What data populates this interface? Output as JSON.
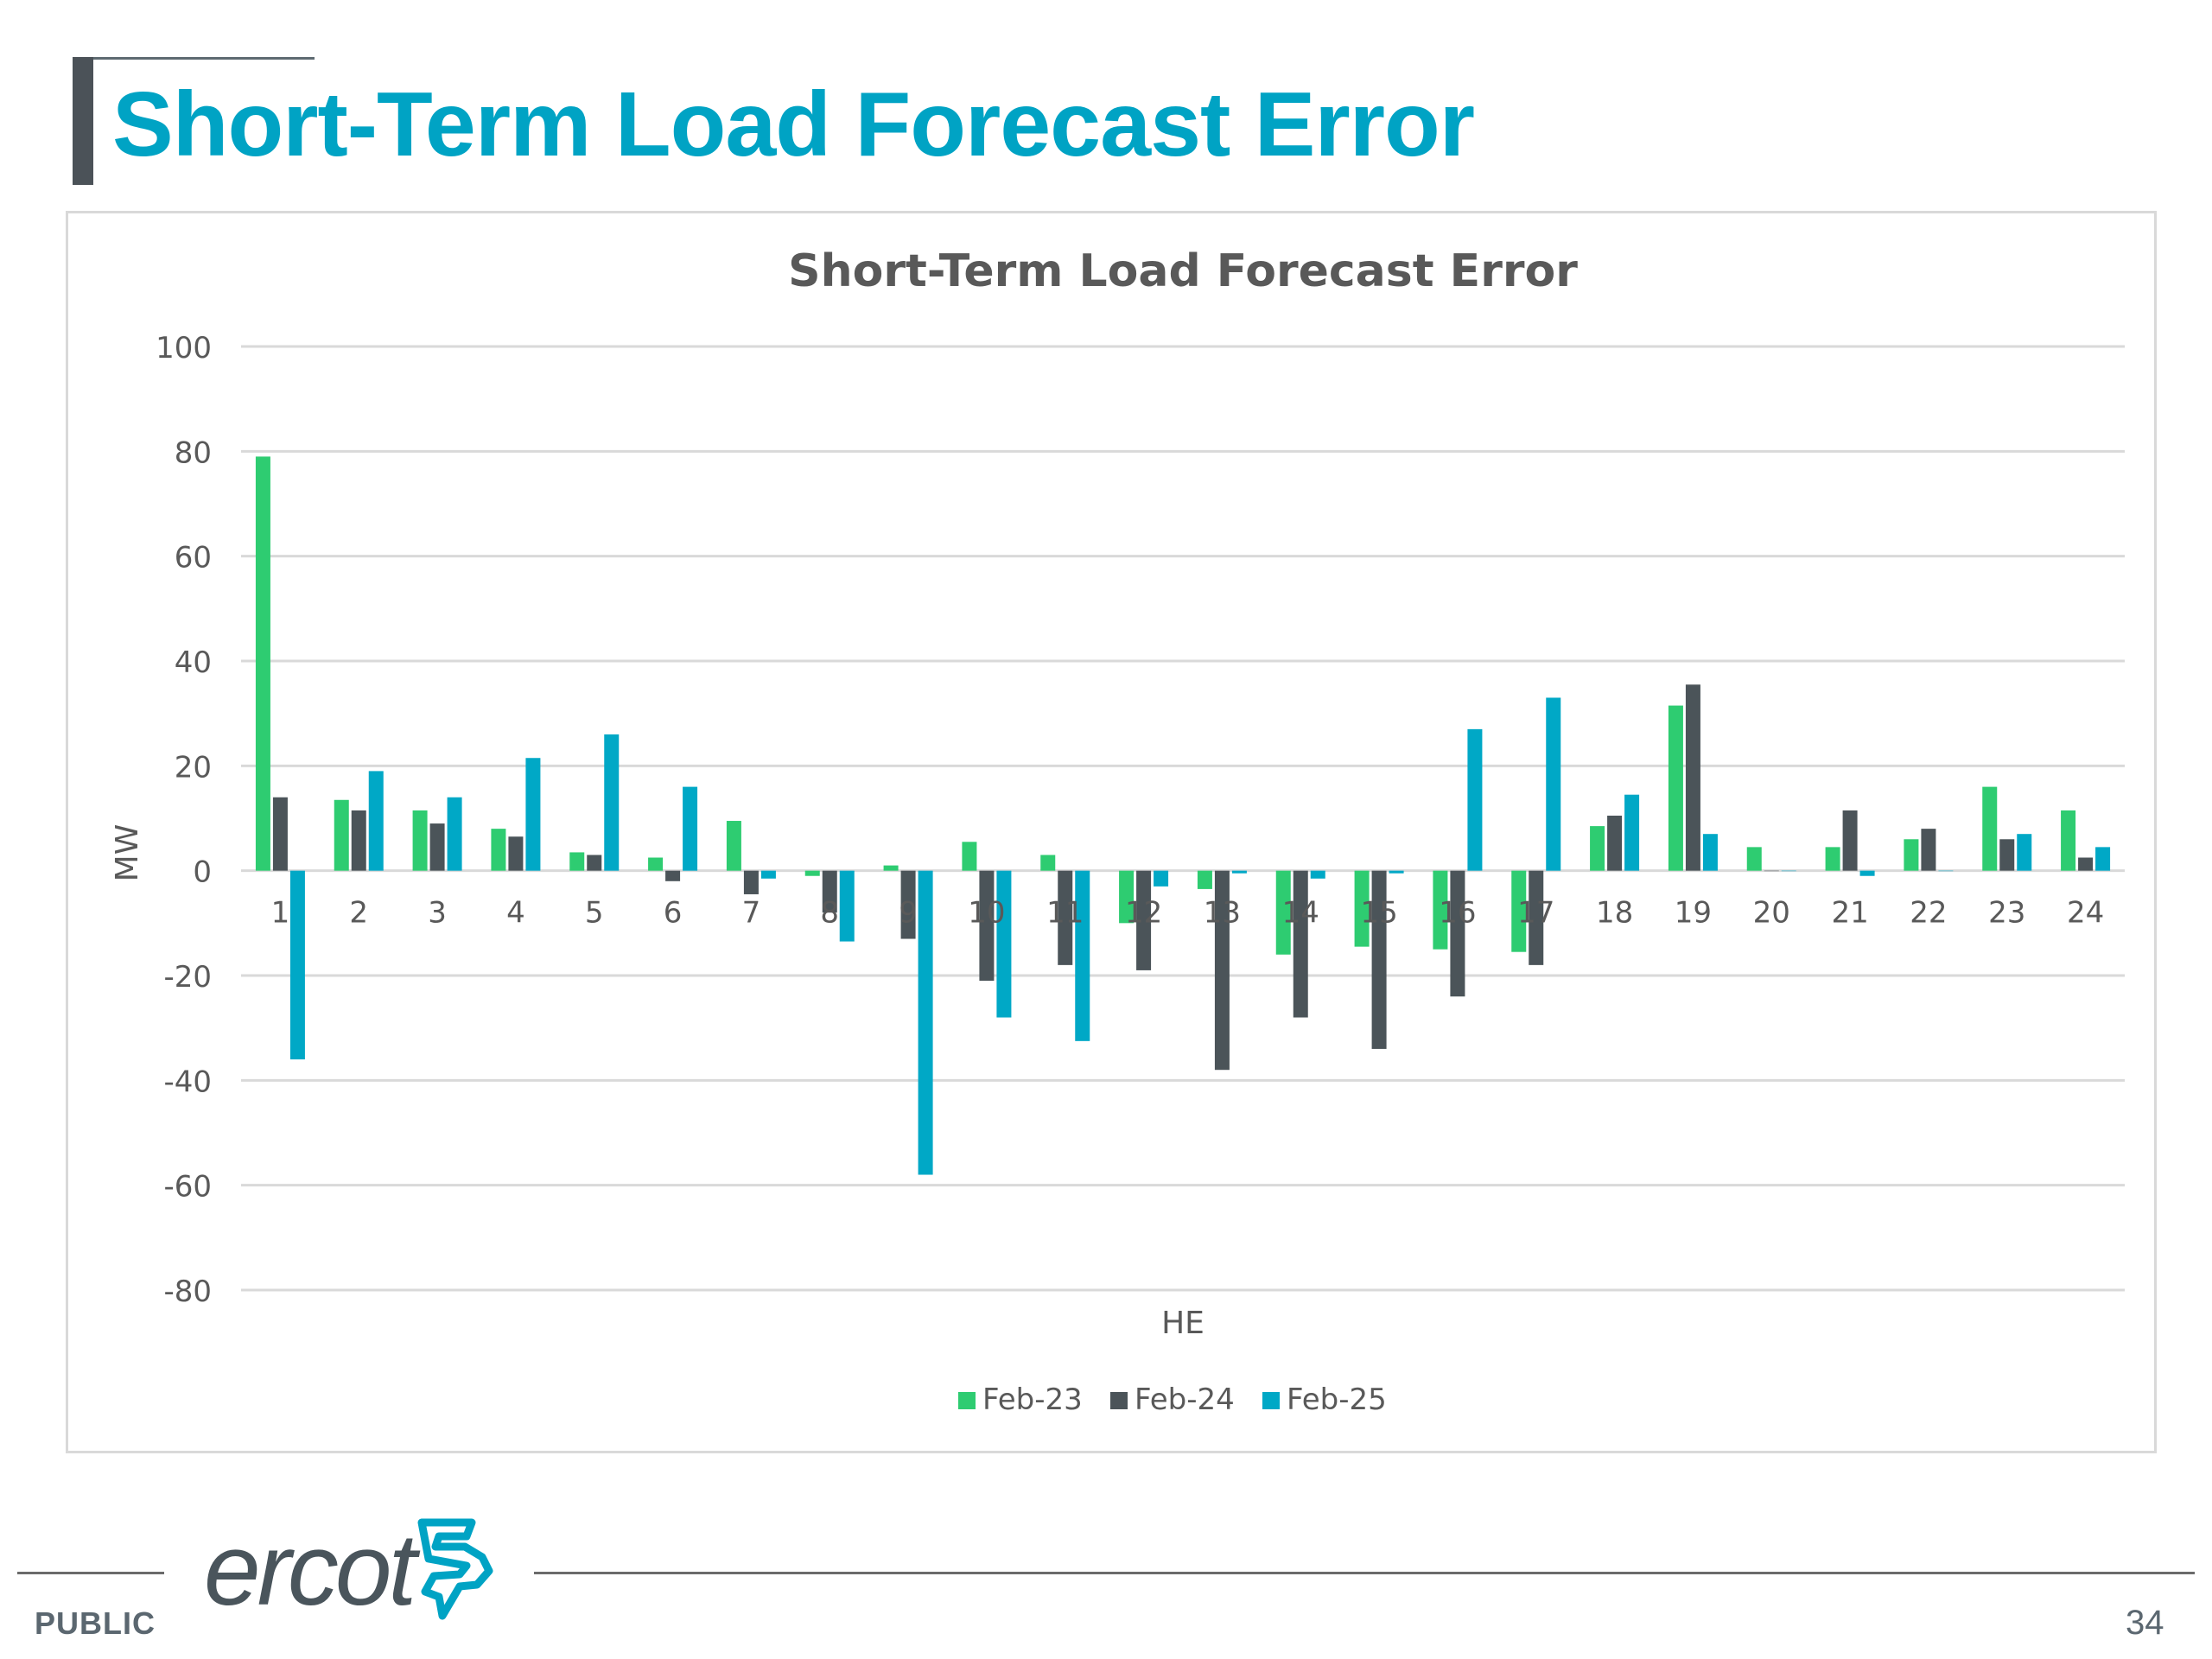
{
  "slide": {
    "title": "Short-Term Load Forecast Error",
    "footer_label": "PUBLIC",
    "page_number": "34",
    "logo_text": "ercot",
    "logo_icon": "ercot-texas-icon"
  },
  "colors": {
    "title": "#00a3c4",
    "Feb-23": "#2ecc71",
    "Feb-24": "#4b5459",
    "Feb-25": "#00a8c6"
  },
  "chart_data": {
    "type": "bar",
    "title": "Short-Term Load Forecast Error",
    "xlabel": "HE",
    "ylabel": "MW",
    "ylim": [
      -80,
      100
    ],
    "yticks": [
      100,
      80,
      60,
      40,
      20,
      0,
      -20,
      -40,
      -60,
      -80
    ],
    "grid": true,
    "legend_position": "bottom",
    "categories": [
      "1",
      "2",
      "3",
      "4",
      "5",
      "6",
      "7",
      "8",
      "9",
      "10",
      "11",
      "12",
      "13",
      "14",
      "15",
      "16",
      "17",
      "18",
      "19",
      "20",
      "21",
      "22",
      "23",
      "24"
    ],
    "series": [
      {
        "name": "Feb-23",
        "values": [
          79,
          13.5,
          11.5,
          8,
          3.5,
          2.5,
          9.5,
          -1,
          1,
          5.5,
          3,
          -10,
          -3.5,
          -16,
          -14.5,
          -15,
          -15.5,
          8.5,
          31.5,
          4.5,
          4.5,
          6,
          16,
          11.5
        ]
      },
      {
        "name": "Feb-24",
        "values": [
          14,
          11.5,
          9,
          6.5,
          3,
          -2,
          -4.5,
          -8,
          -13,
          -21,
          -18,
          -19,
          -38,
          -28,
          -34,
          -24,
          -18,
          10.5,
          35.5,
          0,
          11.5,
          8,
          6,
          2.5
        ]
      },
      {
        "name": "Feb-25",
        "values": [
          -36,
          19,
          14,
          21.5,
          26,
          16,
          -1.5,
          -13.5,
          -58,
          -28,
          -32.5,
          -3,
          -0.5,
          -1.5,
          -0.5,
          27,
          33,
          14.5,
          7,
          0,
          -1,
          0,
          7,
          4.5
        ]
      }
    ]
  }
}
